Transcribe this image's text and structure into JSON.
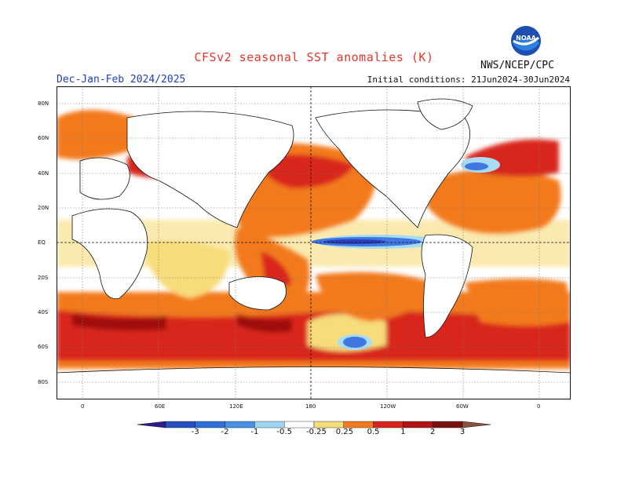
{
  "header": {
    "title": "CFSv2 seasonal SST anomalies (K)",
    "period": "Dec-Jan-Feb 2024/2025",
    "initial_conditions": "Initial conditions: 21Jun2024-30Jun2024",
    "agency": "NWS/NCEP/CPC",
    "logo_text": "NOAA"
  },
  "map": {
    "lat_labels": [
      "80N",
      "60N",
      "40N",
      "20N",
      "EQ",
      "20S",
      "40S",
      "60S",
      "80S"
    ],
    "lon_labels": [
      "0",
      "60E",
      "120E",
      "180",
      "120W",
      "60W",
      "0"
    ],
    "colors": {
      "strong_neg": "#2a3fb5",
      "neg": "#3f78e0",
      "weak_neg": "#a8dcf4",
      "weak_pos": "#f7dc7a",
      "pos": "#f37a1f",
      "strong_pos": "#d9261c",
      "very_strong_pos": "#a01010",
      "land": "#ffffff"
    }
  },
  "colorbar": {
    "labels": [
      "-3",
      "-2",
      "-1",
      "-0.5",
      "-0.25",
      "0.25",
      "0.5",
      "1",
      "2",
      "3"
    ],
    "colors": [
      "#2a1d8c",
      "#2450c0",
      "#2e6fd8",
      "#4a8fe6",
      "#9fd5f2",
      "#ffffff",
      "#f7dc7a",
      "#f37a1f",
      "#d9261c",
      "#b01414",
      "#7a1010",
      "#8a5040"
    ]
  }
}
